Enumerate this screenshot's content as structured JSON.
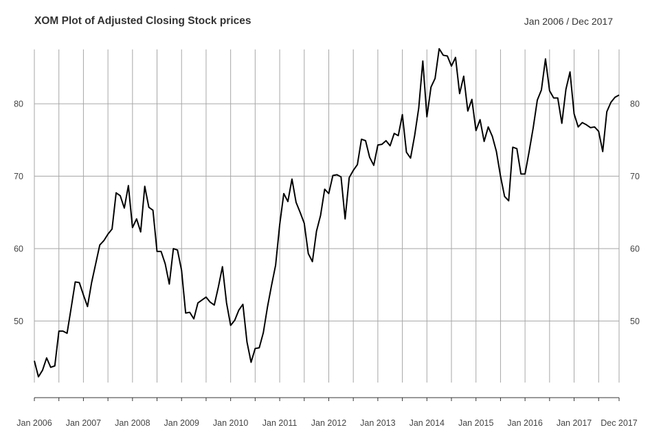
{
  "chart_data": {
    "type": "line",
    "title": "XOM Plot of Adjusted Closing Stock prices",
    "date_range_label": "Jan 2006 / Dec 2017",
    "xlabel": "",
    "ylabel": "",
    "grid": true,
    "legend": "none",
    "line_color": "#000000",
    "grid_color": "#a6a6a6",
    "ylim": [
      41.5,
      87.5
    ],
    "y_ticks": [
      50,
      60,
      70,
      80
    ],
    "x_tick_labels": [
      "Jan 2006",
      "Jan 2007",
      "Jan 2008",
      "Jan 2009",
      "Jan 2010",
      "Jan 2011",
      "Jan 2012",
      "Jan 2013",
      "Jan 2014",
      "Jan 2015",
      "Jan 2016",
      "Jan 2017",
      "Dec 2017"
    ],
    "x_tick_months": [
      0,
      12,
      24,
      36,
      48,
      60,
      72,
      84,
      96,
      108,
      120,
      132,
      143
    ],
    "series": [
      {
        "values": [
          44.5,
          42.3,
          43.2,
          44.9,
          43.6,
          43.8,
          48.6,
          48.6,
          48.3,
          51.8,
          55.4,
          55.3,
          53.6,
          52.0,
          55.3,
          57.9,
          60.5,
          61.1,
          62.0,
          62.7,
          67.7,
          67.3,
          65.6,
          68.7,
          62.9,
          64.1,
          62.3,
          68.6,
          65.7,
          65.3,
          59.6,
          59.6,
          57.9,
          55.1,
          60.0,
          59.8,
          57.0,
          51.1,
          51.2,
          50.3,
          52.5,
          52.9,
          53.3,
          52.6,
          52.2,
          54.7,
          57.5,
          52.5,
          49.4,
          50.1,
          51.5,
          52.3,
          47.1,
          44.3,
          46.2,
          46.3,
          48.4,
          51.9,
          54.9,
          57.7,
          63.3,
          67.6,
          66.5,
          69.6,
          66.4,
          65.0,
          63.5,
          59.3,
          58.2,
          62.4,
          64.6,
          68.2,
          67.6,
          70.1,
          70.2,
          69.9,
          64.1,
          69.8,
          70.8,
          71.6,
          75.1,
          74.9,
          72.6,
          71.5,
          74.3,
          74.4,
          74.9,
          74.2,
          75.9,
          75.6,
          78.5,
          73.3,
          72.5,
          75.6,
          79.4,
          85.9,
          78.2,
          82.3,
          83.5,
          87.6,
          86.7,
          86.6,
          85.2,
          86.4,
          81.4,
          83.8,
          79.0,
          80.6,
          76.3,
          77.8,
          74.8,
          76.8,
          75.5,
          73.4,
          70.0,
          67.2,
          66.6,
          74.0,
          73.8,
          70.3,
          70.3,
          73.4,
          76.7,
          80.5,
          81.9,
          86.2,
          81.8,
          80.8,
          80.8,
          77.3,
          82.0,
          84.4,
          78.6,
          76.8,
          77.4,
          77.1,
          76.7,
          76.8,
          76.2,
          73.4,
          78.9,
          80.2,
          80.9,
          81.2
        ]
      }
    ]
  }
}
